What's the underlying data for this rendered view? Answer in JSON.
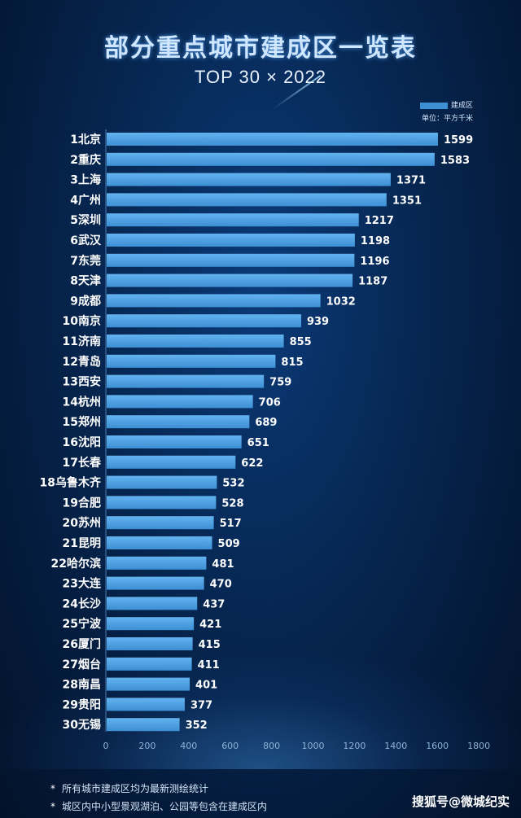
{
  "title": "部分重点城市建成区一览表",
  "subtitle": "TOP 30 × 2022",
  "legend": {
    "series_name": "建成区",
    "unit": "单位：平方千米"
  },
  "notes": [
    "所有城市建成区均为最新测绘统计",
    "城区内中小型景观湖泊、公园等包含在建成区内"
  ],
  "note_marker": "*",
  "watermark": "搜狐号@微城纪实",
  "colors": {
    "bar": "#3d8fd4",
    "bar_light": "#62b3ef",
    "axis": "#8fb3d9"
  },
  "chart_data": {
    "type": "bar",
    "orientation": "horizontal",
    "title": "部分重点城市建成区一览表",
    "subtitle": "TOP 30 × 2022",
    "xlabel": "",
    "ylabel": "",
    "unit": "平方千米",
    "xlim": [
      0,
      1800
    ],
    "xticks": [
      0,
      200,
      400,
      600,
      800,
      1000,
      1200,
      1400,
      1600,
      1800
    ],
    "legend": "top-right",
    "categories": [
      "1北京",
      "2重庆",
      "3上海",
      "4广州",
      "5深圳",
      "6武汉",
      "7东莞",
      "8天津",
      "9成都",
      "10南京",
      "11济南",
      "12青岛",
      "13西安",
      "14杭州",
      "15郑州",
      "16沈阳",
      "17长春",
      "18乌鲁木齐",
      "19合肥",
      "20苏州",
      "21昆明",
      "22哈尔滨",
      "23大连",
      "24长沙",
      "25宁波",
      "26厦门",
      "27烟台",
      "28南昌",
      "29贵阳",
      "30无锡"
    ],
    "values": [
      1599,
      1583,
      1371,
      1351,
      1217,
      1198,
      1196,
      1187,
      1032,
      939,
      855,
      815,
      759,
      706,
      689,
      651,
      622,
      532,
      528,
      517,
      509,
      481,
      470,
      437,
      421,
      415,
      411,
      401,
      377,
      352
    ]
  }
}
